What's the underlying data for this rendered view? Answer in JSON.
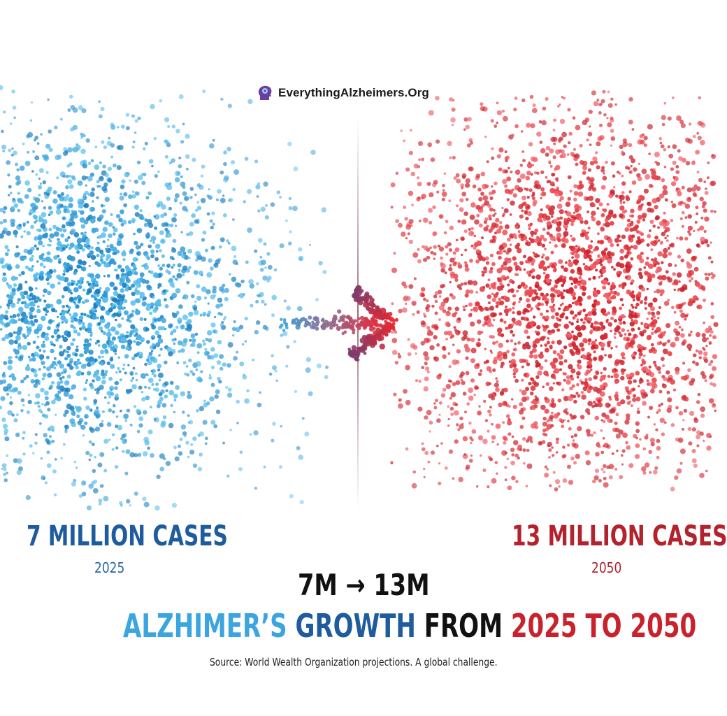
{
  "brand": {
    "logo_text": "EverythingAlzheimers.Org",
    "logo_icon": "head-silhouette-icon"
  },
  "left": {
    "label": "7 MILLION CASES",
    "year": "2025",
    "dot_color": "#3aa5de"
  },
  "right": {
    "label": "13 MILLION CASES",
    "year": "2050",
    "dot_color": "#e0323a"
  },
  "comparison": "7M → 13M",
  "headline": {
    "part1": "ALZHIMER’S",
    "part2": "GROWTH",
    "part3": "FROM",
    "part4": "2025 TO 2050"
  },
  "source": "Source: World Wealth Organization projections. A global challenge.",
  "colors": {
    "blue_light": "#3aa5de",
    "blue_dark": "#1f5c9e",
    "red": "#c8232d",
    "text": "#111111"
  }
}
